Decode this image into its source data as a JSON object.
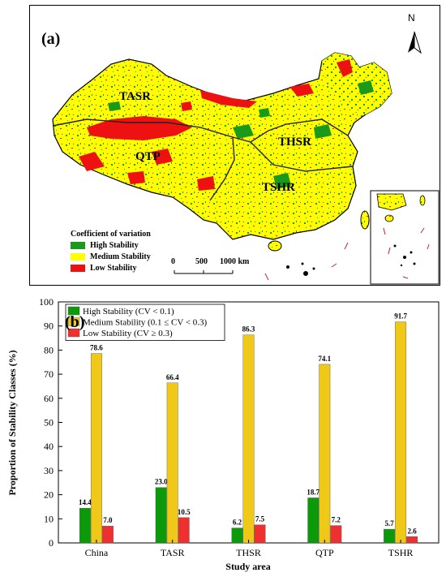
{
  "map": {
    "panel_label": "(a)",
    "north_label": "N",
    "regions": [
      "TASR",
      "QTP",
      "THSR",
      "TSHR"
    ],
    "legend_title": "Coefficient of variation",
    "legend_items": [
      {
        "label": "High Stability",
        "color": "#1a9a1a"
      },
      {
        "label": "Medium Stability",
        "color": "#ffff00"
      },
      {
        "label": "Low Stability",
        "color": "#ee1111"
      }
    ],
    "scale_labels": [
      "0",
      "500",
      "1000 km"
    ]
  },
  "chart_data": {
    "type": "bar",
    "panel_label": "(b)",
    "categories": [
      "China",
      "TASR",
      "THSR",
      "QTP",
      "TSHR"
    ],
    "series": [
      {
        "name": "High Stability (CV < 0.1)",
        "color": "#0a9a0a",
        "values": [
          14.4,
          23.0,
          6.2,
          18.7,
          5.7
        ]
      },
      {
        "name": "Medium Stability (0.1 ≤ CV < 0.3)",
        "color": "#f0c818",
        "values": [
          78.6,
          66.4,
          86.3,
          74.1,
          91.7
        ]
      },
      {
        "name": "Low Stability (CV ≥ 0.3)",
        "color": "#ee3030",
        "values": [
          7.0,
          10.5,
          7.5,
          7.2,
          2.6
        ]
      }
    ],
    "data_labels": [
      [
        "14.4",
        "78.6",
        "7.0"
      ],
      [
        "23.0",
        "66.4",
        "10.5"
      ],
      [
        "6.2",
        "86.3",
        "7.5"
      ],
      [
        "18.7",
        "74.1",
        "7.2"
      ],
      [
        "5.7",
        "91.7",
        "2.6"
      ]
    ],
    "xlabel": "Study area",
    "ylabel": "Proportion of Stability Classes (%)",
    "ylim": [
      0,
      100
    ],
    "yticks": [
      0,
      10,
      20,
      30,
      40,
      50,
      60,
      70,
      80,
      90,
      100
    ],
    "legend_position": "top-left",
    "grid": false
  }
}
